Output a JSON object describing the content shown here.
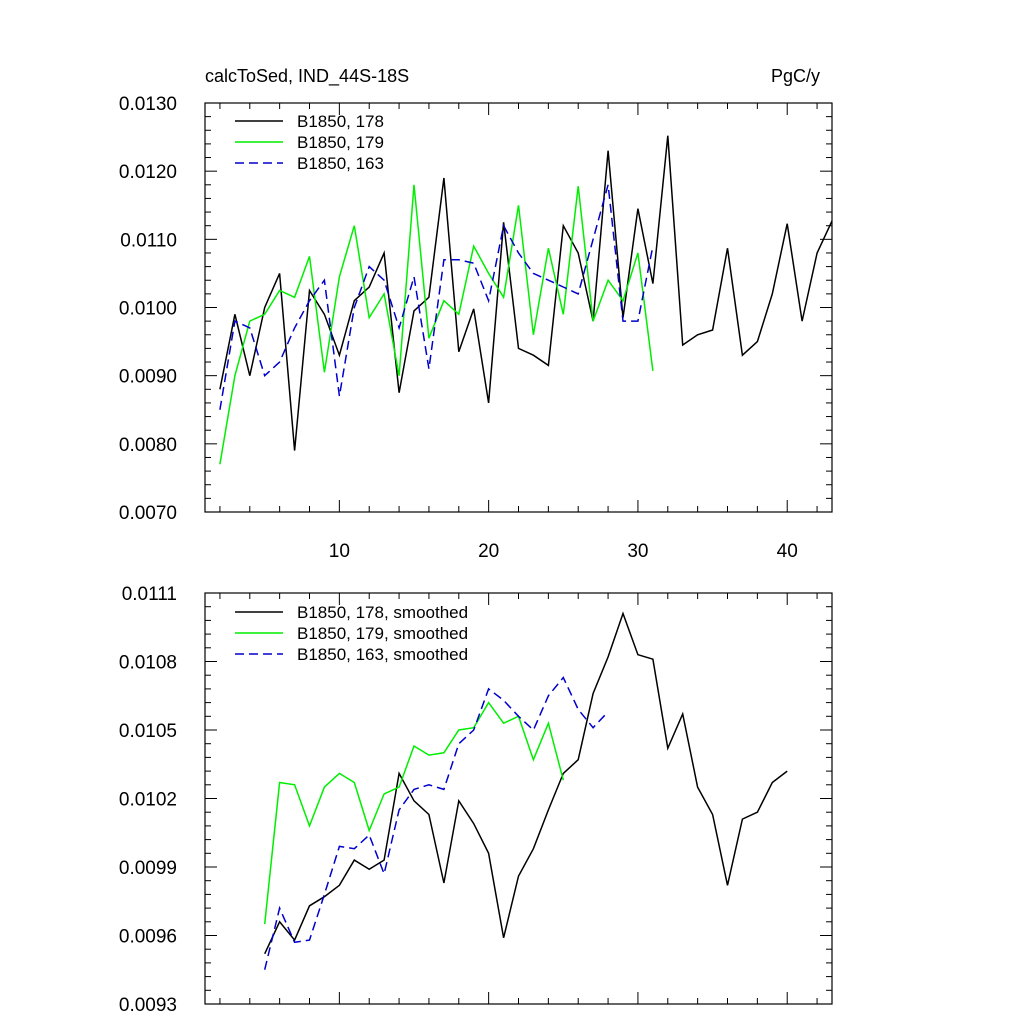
{
  "colors": {
    "s178": "#000000",
    "s179": "#00ee00",
    "s163": "#0000cc"
  },
  "chart_data": [
    {
      "type": "line",
      "title_left": "calcToSed, IND_44S-18S",
      "title_right": "PgC/y",
      "xlim": [
        1,
        43
      ],
      "ylim": [
        0.007,
        0.013
      ],
      "x_ticks": [
        10,
        20,
        30,
        40
      ],
      "x_tick_labels": [
        "10",
        "20",
        "30",
        "40"
      ],
      "y_ticks": [
        0.007,
        0.008,
        0.009,
        0.01,
        0.011,
        0.012,
        0.013
      ],
      "y_tick_labels": [
        "0.0070",
        "0.0080",
        "0.0090",
        "0.0100",
        "0.0110",
        "0.0120",
        "0.0130"
      ],
      "legend_position": "top-left",
      "series": [
        {
          "name": "B1850, 178",
          "color": "#000000",
          "dash": "solid",
          "x_start": 2,
          "values": [
            0.0088,
            0.0099,
            0.009,
            0.01,
            0.0105,
            0.0079,
            0.01025,
            0.0099,
            0.0093,
            0.0101,
            0.0103,
            0.0108,
            0.00875,
            0.00995,
            0.01015,
            0.0119,
            0.00935,
            0.00998,
            0.0086,
            0.01125,
            0.0094,
            0.0093,
            0.00915,
            0.0112,
            0.0108,
            0.0098,
            0.0123,
            0.00985,
            0.01145,
            0.01035,
            0.01252,
            0.00945,
            0.0096,
            0.00967,
            0.01087,
            0.0093,
            0.0095,
            0.0102,
            0.01123,
            0.0098,
            0.0108,
            0.01127
          ]
        },
        {
          "name": "B1850, 179",
          "color": "#00ee00",
          "dash": "solid",
          "x_start": 2,
          "values": [
            0.0077,
            0.009,
            0.0098,
            0.0099,
            0.01025,
            0.01015,
            0.01075,
            0.00905,
            0.01045,
            0.0112,
            0.00985,
            0.0102,
            0.009,
            0.0118,
            0.00955,
            0.0101,
            0.0099,
            0.0109,
            0.0105,
            0.01015,
            0.0115,
            0.0096,
            0.01087,
            0.0099,
            0.01178,
            0.0098,
            0.0104,
            0.0101,
            0.0108,
            0.00907
          ]
        },
        {
          "name": "B1850, 163",
          "color": "#0000cc",
          "dash": "dashed",
          "x_start": 2,
          "values": [
            0.0085,
            0.0098,
            0.0097,
            0.009,
            0.0092,
            0.0097,
            0.0101,
            0.0104,
            0.0087,
            0.01,
            0.0106,
            0.0104,
            0.0097,
            0.01045,
            0.0091,
            0.0107,
            0.0107,
            0.01065,
            0.0101,
            0.0112,
            0.0108,
            0.0105,
            0.0104,
            0.0103,
            0.0102,
            0.011,
            0.0118,
            0.0098,
            0.0098,
            0.0109
          ]
        }
      ]
    },
    {
      "type": "line",
      "xlim": [
        1,
        43
      ],
      "ylim": [
        0.0093,
        0.0111
      ],
      "x_ticks": [
        10,
        20,
        30,
        40
      ],
      "y_ticks": [
        0.0093,
        0.0096,
        0.0099,
        0.0102,
        0.0105,
        0.0108,
        0.0111
      ],
      "y_tick_labels": [
        "0.0093",
        "0.0096",
        "0.0099",
        "0.0102",
        "0.0105",
        "0.0108",
        "0.0111"
      ],
      "legend_position": "top-left",
      "series": [
        {
          "name": "B1850, 178, smoothed",
          "color": "#000000",
          "dash": "solid",
          "x_start": 5,
          "values": [
            0.00952,
            0.00966,
            0.00958,
            0.00973,
            0.00977,
            0.00982,
            0.00993,
            0.00989,
            0.00993,
            0.01031,
            0.01019,
            0.01013,
            0.00983,
            0.01019,
            0.01009,
            0.00996,
            0.00959,
            0.00986,
            0.00998,
            0.01015,
            0.01031,
            0.01037,
            0.01066,
            0.01082,
            0.01101,
            0.01083,
            0.01081,
            0.01042,
            0.01057,
            0.01025,
            0.01013,
            0.00982,
            0.01011,
            0.01014,
            0.01027,
            0.01032
          ]
        },
        {
          "name": "B1850, 179, smoothed",
          "color": "#00ee00",
          "dash": "solid",
          "x_start": 5,
          "values": [
            0.00965,
            0.01027,
            0.01026,
            0.01008,
            0.01025,
            0.01031,
            0.01027,
            0.01006,
            0.01022,
            0.01025,
            0.01043,
            0.01039,
            0.0104,
            0.0105,
            0.01051,
            0.01062,
            0.01053,
            0.01056,
            0.01037,
            0.01053,
            0.01028
          ]
        },
        {
          "name": "B1850, 163, smoothed",
          "color": "#0000cc",
          "dash": "dashed",
          "x_start": 5,
          "values": [
            0.00945,
            0.00972,
            0.00957,
            0.00958,
            0.00978,
            0.00999,
            0.00998,
            0.01004,
            0.00987,
            0.01015,
            0.01024,
            0.01026,
            0.01024,
            0.01044,
            0.0105,
            0.01068,
            0.01063,
            0.01056,
            0.0105,
            0.01065,
            0.01073,
            0.01059,
            0.01051,
            0.01058
          ]
        }
      ]
    }
  ]
}
